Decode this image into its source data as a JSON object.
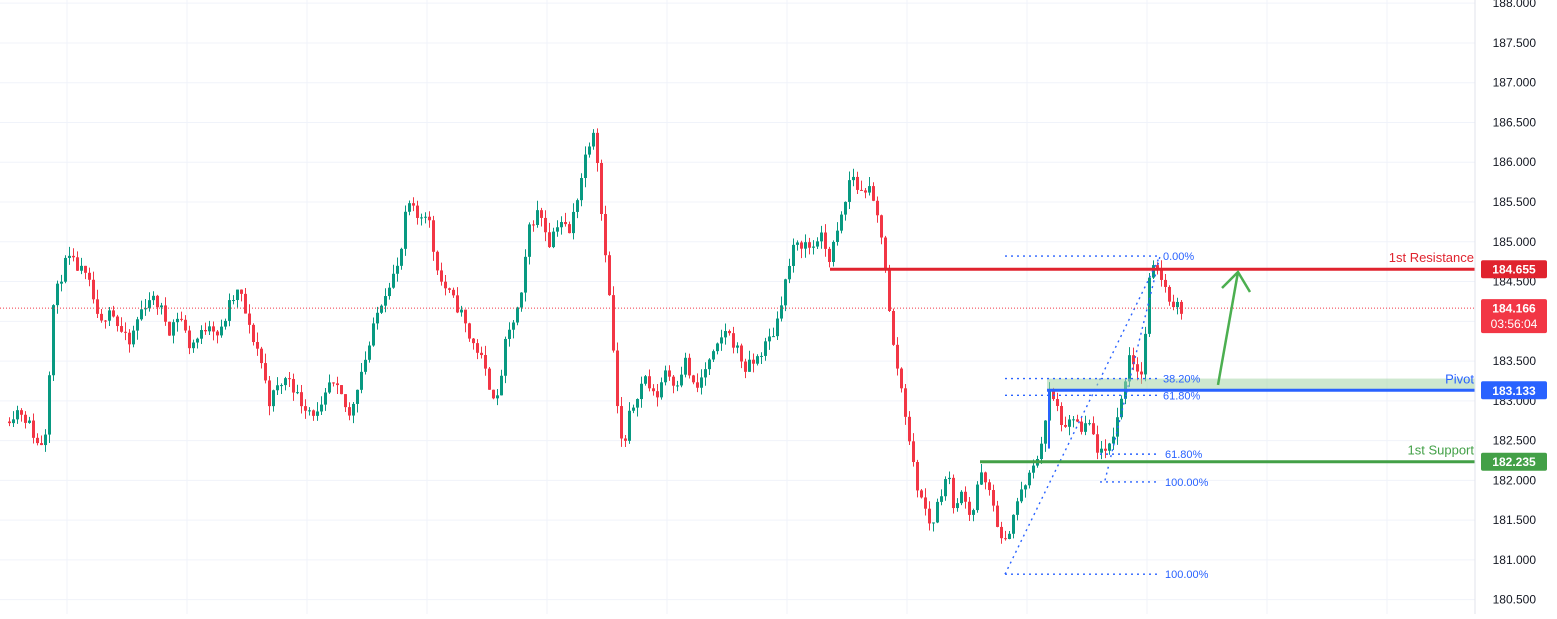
{
  "chart_data": {
    "type": "candlestick",
    "ylim": [
      180.32,
      188.04
    ],
    "grid": true,
    "y_ticks": [
      "180.500",
      "181.000",
      "181.500",
      "182.000",
      "182.500",
      "183.000",
      "183.500",
      "184.000",
      "184.500",
      "185.000",
      "185.500",
      "186.000",
      "186.500",
      "187.000",
      "187.500",
      "188.000"
    ],
    "y_tick_values": [
      180.5,
      181.0,
      181.5,
      182.0,
      182.5,
      183.0,
      183.5,
      184.0,
      184.5,
      185.0,
      185.5,
      186.0,
      186.5,
      187.0,
      187.5,
      188.0
    ],
    "path_knots": [
      [
        0,
        182.5
      ],
      [
        10,
        182.8
      ],
      [
        20,
        182.9
      ],
      [
        30,
        182.7
      ],
      [
        40,
        182.4
      ],
      [
        48,
        182.7
      ],
      [
        52,
        184.1
      ],
      [
        60,
        184.5
      ],
      [
        68,
        184.8
      ],
      [
        76,
        184.7
      ],
      [
        84,
        184.6
      ],
      [
        92,
        184.4
      ],
      [
        100,
        183.9
      ],
      [
        110,
        184.2
      ],
      [
        120,
        183.9
      ],
      [
        130,
        183.7
      ],
      [
        140,
        184.1
      ],
      [
        150,
        184.3
      ],
      [
        160,
        184.2
      ],
      [
        170,
        183.9
      ],
      [
        180,
        184.1
      ],
      [
        190,
        183.7
      ],
      [
        200,
        183.8
      ],
      [
        210,
        184.0
      ],
      [
        220,
        183.8
      ],
      [
        230,
        184.2
      ],
      [
        240,
        184.4
      ],
      [
        250,
        183.9
      ],
      [
        260,
        183.6
      ],
      [
        270,
        183.0
      ],
      [
        280,
        183.2
      ],
      [
        290,
        183.3
      ],
      [
        300,
        183.0
      ],
      [
        310,
        182.9
      ],
      [
        320,
        182.8
      ],
      [
        330,
        183.2
      ],
      [
        340,
        183.1
      ],
      [
        350,
        182.8
      ],
      [
        360,
        183.3
      ],
      [
        370,
        183.7
      ],
      [
        380,
        184.2
      ],
      [
        390,
        184.5
      ],
      [
        400,
        184.7
      ],
      [
        408,
        185.5
      ],
      [
        418,
        185.3
      ],
      [
        428,
        185.4
      ],
      [
        434,
        184.9
      ],
      [
        442,
        184.5
      ],
      [
        452,
        184.3
      ],
      [
        462,
        184.1
      ],
      [
        470,
        183.8
      ],
      [
        480,
        183.6
      ],
      [
        490,
        183.2
      ],
      [
        498,
        183.0
      ],
      [
        506,
        183.7
      ],
      [
        514,
        184.0
      ],
      [
        522,
        184.3
      ],
      [
        530,
        185.2
      ],
      [
        540,
        185.4
      ],
      [
        550,
        185.0
      ],
      [
        560,
        185.3
      ],
      [
        570,
        185.1
      ],
      [
        580,
        185.7
      ],
      [
        588,
        186.2
      ],
      [
        596,
        186.5
      ],
      [
        600,
        185.6
      ],
      [
        606,
        184.9
      ],
      [
        612,
        184.0
      ],
      [
        618,
        182.9
      ],
      [
        624,
        182.3
      ],
      [
        630,
        182.8
      ],
      [
        638,
        183.1
      ],
      [
        646,
        183.3
      ],
      [
        656,
        183.0
      ],
      [
        666,
        183.4
      ],
      [
        676,
        183.2
      ],
      [
        686,
        183.5
      ],
      [
        696,
        183.1
      ],
      [
        706,
        183.4
      ],
      [
        716,
        183.6
      ],
      [
        726,
        183.9
      ],
      [
        736,
        183.7
      ],
      [
        746,
        183.4
      ],
      [
        756,
        183.5
      ],
      [
        766,
        183.7
      ],
      [
        776,
        183.9
      ],
      [
        784,
        184.4
      ],
      [
        794,
        184.9
      ],
      [
        804,
        185.0
      ],
      [
        812,
        184.9
      ],
      [
        820,
        185.1
      ],
      [
        830,
        184.8
      ],
      [
        838,
        185.1
      ],
      [
        846,
        185.5
      ],
      [
        852,
        185.9
      ],
      [
        860,
        185.6
      ],
      [
        868,
        185.7
      ],
      [
        876,
        185.4
      ],
      [
        884,
        185.0
      ],
      [
        892,
        183.8
      ],
      [
        900,
        183.3
      ],
      [
        908,
        182.7
      ],
      [
        916,
        182.0
      ],
      [
        924,
        181.7
      ],
      [
        932,
        181.4
      ],
      [
        940,
        181.8
      ],
      [
        948,
        182.1
      ],
      [
        956,
        181.6
      ],
      [
        964,
        181.9
      ],
      [
        972,
        181.5
      ],
      [
        980,
        182.1
      ],
      [
        988,
        181.9
      ],
      [
        996,
        181.6
      ],
      [
        1004,
        181.1
      ],
      [
        1012,
        181.5
      ],
      [
        1020,
        181.8
      ],
      [
        1028,
        182.0
      ],
      [
        1036,
        182.2
      ],
      [
        1044,
        182.6
      ],
      [
        1050,
        183.1
      ],
      [
        1058,
        182.9
      ],
      [
        1066,
        182.6
      ],
      [
        1074,
        182.8
      ],
      [
        1082,
        182.6
      ],
      [
        1090,
        182.7
      ],
      [
        1098,
        182.4
      ],
      [
        1106,
        182.3
      ],
      [
        1114,
        182.6
      ],
      [
        1122,
        183.0
      ],
      [
        1130,
        183.6
      ],
      [
        1138,
        183.4
      ],
      [
        1144,
        183.3
      ],
      [
        1148,
        184.4
      ],
      [
        1152,
        184.6
      ],
      [
        1158,
        184.7
      ],
      [
        1164,
        184.5
      ],
      [
        1170,
        184.3
      ],
      [
        1176,
        184.2
      ],
      [
        1182,
        184.166
      ]
    ],
    "levels": [
      {
        "key": "resistance",
        "label": "1st Resistance",
        "value": 184.655,
        "price_label": "184.655",
        "color": "#e0232e"
      },
      {
        "key": "pivot",
        "label": "Pivot",
        "value": 183.133,
        "price_label": "183.133",
        "color": "#2962ff"
      },
      {
        "key": "support",
        "label": "1st Support",
        "value": 182.235,
        "price_label": "182.235",
        "color": "#43a047"
      }
    ],
    "current_price": {
      "value": 184.166,
      "price_label": "184.166",
      "countdown": "03:56:04",
      "color": "#f23645"
    },
    "fib_upper": [
      {
        "label": "0.00%",
        "value": 184.82
      },
      {
        "label": "38.20%",
        "value": 183.28
      },
      {
        "label": "61.80%",
        "value": 183.07
      }
    ],
    "fib_lower": [
      {
        "label": "61.80%",
        "value": 182.33
      },
      {
        "label": "100.00%",
        "value": 181.98
      },
      {
        "label": "100.00%",
        "value": 180.82
      }
    ],
    "colors": {
      "up": "#089981",
      "down": "#f23645",
      "grid": "#f0f3fa",
      "axis_text": "#131722",
      "fib": "#2962ff",
      "pivot_zone": "#a5d6a7"
    }
  }
}
